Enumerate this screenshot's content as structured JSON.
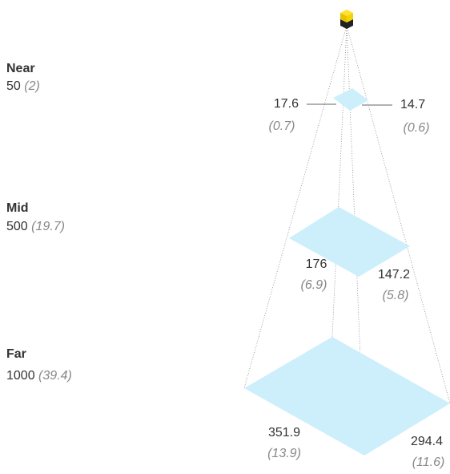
{
  "levels": [
    {
      "name": "Near",
      "distance": 50,
      "distance_alt": "(2)",
      "width_left": 17.6,
      "width_left_alt": "(0.7)",
      "width_right": 14.7,
      "width_right_alt": "(0.6)"
    },
    {
      "name": "Mid",
      "distance": 500,
      "distance_alt": "(19.7)",
      "width_left": 176,
      "width_left_alt": "(6.9)",
      "width_right": 147.2,
      "width_right_alt": "(5.8)"
    },
    {
      "name": "Far",
      "distance": 1000,
      "distance_alt": "(39.4)",
      "width_left": 351.9,
      "width_left_alt": "(13.9)",
      "width_right": 294.4,
      "width_right_alt": "(11.6)"
    }
  ]
}
